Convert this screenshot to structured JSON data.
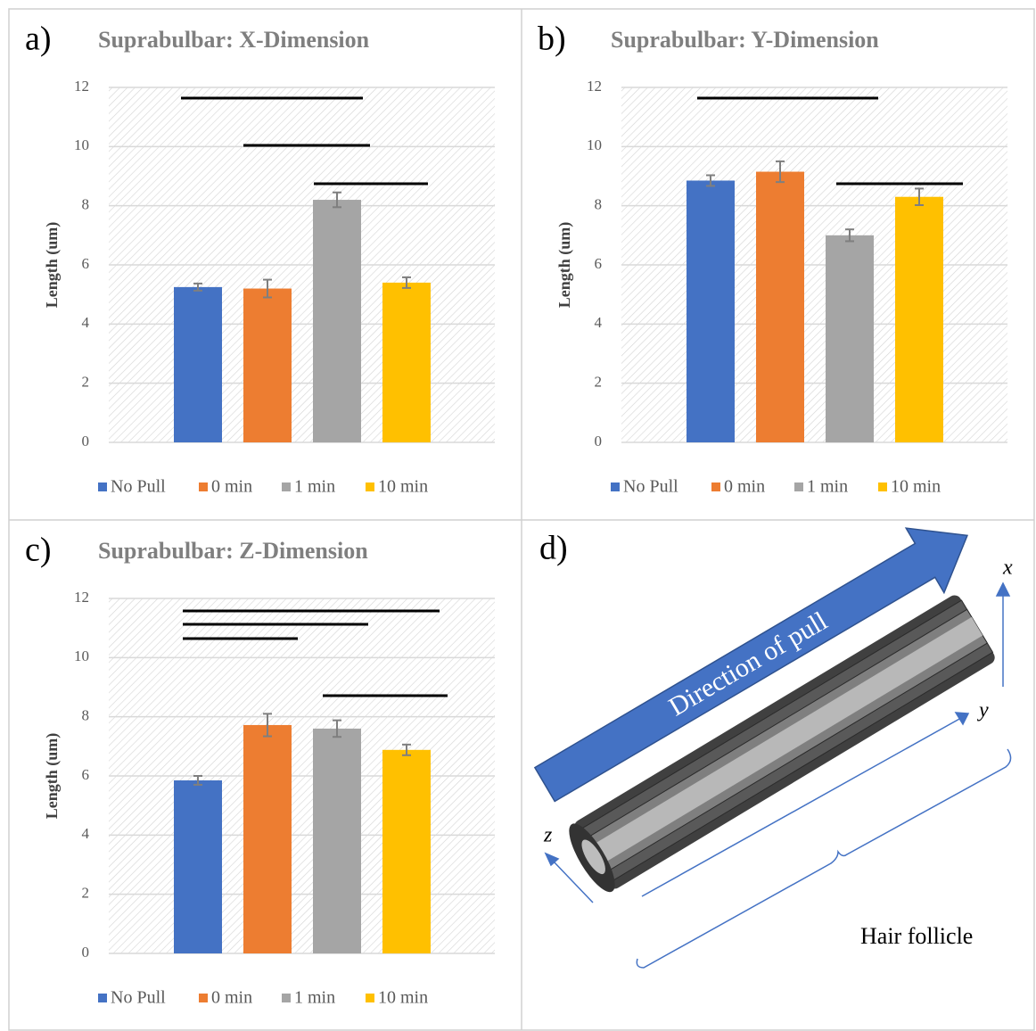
{
  "chart_data": [
    {
      "type": "bar",
      "label": "a)",
      "title": "Suprabulbar: X-Dimension",
      "y_label": "Length (um)",
      "categories": [
        "No Pull",
        "0 min",
        "1 min",
        "10 min"
      ],
      "colors": [
        "#4472c4",
        "#ed7d31",
        "#a5a5a5",
        "#ffc000"
      ],
      "values": [
        5.25,
        5.2,
        8.2,
        5.4
      ],
      "errors": [
        0.12,
        0.3,
        0.25,
        0.18
      ],
      "ylim": [
        0,
        12
      ],
      "yticks": [
        0,
        2,
        4,
        6,
        8,
        10,
        12
      ],
      "grid": true
    },
    {
      "type": "bar",
      "label": "b)",
      "title": "Suprabulbar: Y-Dimension",
      "y_label": "Length (um)",
      "categories": [
        "No Pull",
        "0 min",
        "1 min",
        "10 min"
      ],
      "colors": [
        "#4472c4",
        "#ed7d31",
        "#a5a5a5",
        "#ffc000"
      ],
      "values": [
        8.85,
        9.15,
        7.0,
        8.3
      ],
      "errors": [
        0.18,
        0.35,
        0.2,
        0.28
      ],
      "ylim": [
        0,
        12
      ],
      "yticks": [
        0,
        2,
        4,
        6,
        8,
        10,
        12
      ],
      "grid": true
    },
    {
      "type": "bar",
      "label": "c)",
      "title": "Suprabulbar: Z-Dimension",
      "y_label": "Length (um)",
      "categories": [
        "No Pull",
        "0 min",
        "1 min",
        "10 min"
      ],
      "colors": [
        "#4472c4",
        "#ed7d31",
        "#a5a5a5",
        "#ffc000"
      ],
      "values": [
        5.85,
        7.72,
        7.6,
        6.88
      ],
      "errors": [
        0.15,
        0.38,
        0.28,
        0.18
      ],
      "ylim": [
        0,
        12
      ],
      "yticks": [
        0,
        2,
        4,
        6,
        8,
        10,
        12
      ],
      "grid": true
    }
  ],
  "diagram": {
    "label": "d)",
    "arrow": "Direction of pull",
    "x_axis": "x",
    "y_axis": "y",
    "z_axis": "z",
    "caption": "Hair follicle"
  }
}
